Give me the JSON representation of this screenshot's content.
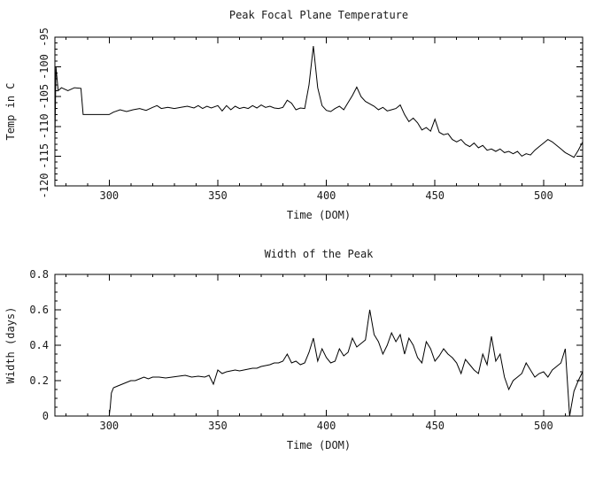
{
  "figure": {
    "background_color": "#ffffff",
    "line_color": "#000000"
  },
  "chart_data": [
    {
      "type": "line",
      "title": "Peak Focal Plane Temperature",
      "xlabel": "Time (DOM)",
      "ylabel": "Temp in C",
      "xlim": [
        275,
        518
      ],
      "ylim": [
        -120,
        -95
      ],
      "grid": false,
      "legend": "none",
      "x_ticks": [
        300,
        350,
        400,
        450,
        500
      ],
      "x_tick_labels": [
        "300",
        "350",
        "400",
        "450",
        "500"
      ],
      "x_minor_step": 10,
      "y_ticks": [
        -120,
        -115,
        -110,
        -105,
        -100,
        -95
      ],
      "y_tick_labels": [
        "-120",
        "-115",
        "-110",
        "-105",
        "-100",
        "-95"
      ],
      "y_minor_step": 1,
      "x": [
        275,
        275.5,
        276.5,
        278,
        281,
        284,
        287,
        288,
        292,
        296,
        300,
        302,
        305,
        308,
        311,
        314,
        317,
        320,
        322,
        324,
        327,
        330,
        333,
        336,
        339,
        341,
        343,
        345,
        347,
        350,
        352,
        354,
        356,
        358,
        360,
        362,
        364,
        366,
        368,
        370,
        372,
        374,
        376,
        378,
        380,
        382,
        384,
        386,
        388,
        390,
        392,
        394,
        396,
        398,
        400,
        402,
        404,
        406,
        408,
        410,
        412,
        414,
        416,
        418,
        420,
        422,
        424,
        426,
        428,
        430,
        432,
        434,
        436,
        438,
        440,
        442,
        444,
        446,
        448,
        450,
        452,
        454,
        456,
        458,
        460,
        462,
        464,
        466,
        468,
        470,
        472,
        474,
        476,
        478,
        480,
        482,
        484,
        486,
        488,
        490,
        492,
        494,
        496,
        498,
        500,
        502,
        504,
        506,
        508,
        510,
        512,
        514,
        516,
        518
      ],
      "y": [
        -112,
        -100,
        -104,
        -103.5,
        -104,
        -103.5,
        -103.6,
        -108,
        -108,
        -108,
        -108,
        -107.6,
        -107.2,
        -107.5,
        -107.2,
        -107,
        -107.3,
        -106.8,
        -106.5,
        -107,
        -106.8,
        -107,
        -106.8,
        -106.6,
        -106.9,
        -106.5,
        -107,
        -106.6,
        -106.9,
        -106.5,
        -107.4,
        -106.5,
        -107.2,
        -106.6,
        -107,
        -106.8,
        -107,
        -106.5,
        -106.9,
        -106.4,
        -106.8,
        -106.6,
        -106.9,
        -107,
        -106.8,
        -105.6,
        -106.1,
        -107.2,
        -106.9,
        -107,
        -103,
        -96.5,
        -103.5,
        -106.5,
        -107.3,
        -107.5,
        -107,
        -106.6,
        -107.2,
        -106,
        -104.8,
        -103.4,
        -105,
        -105.8,
        -106.2,
        -106.6,
        -107.2,
        -106.8,
        -107.4,
        -107.2,
        -107,
        -106.4,
        -108,
        -109.2,
        -108.6,
        -109.4,
        -110.6,
        -110.2,
        -110.8,
        -108.8,
        -111,
        -111.4,
        -111.2,
        -112.2,
        -112.6,
        -112.2,
        -113,
        -113.4,
        -112.8,
        -113.6,
        -113.2,
        -114,
        -113.8,
        -114.2,
        -113.8,
        -114.4,
        -114.2,
        -114.6,
        -114.2,
        -115,
        -114.6,
        -114.8,
        -114,
        -113.4,
        -112.8,
        -112.2,
        -112.6,
        -113.2,
        -113.8,
        -114.4,
        -114.8,
        -115.2,
        -114,
        -112.6
      ]
    },
    {
      "type": "line",
      "title": "Width of the Peak",
      "xlabel": "Time (DOM)",
      "ylabel": "Width (days)",
      "xlim": [
        275,
        518
      ],
      "ylim": [
        0,
        0.8
      ],
      "grid": false,
      "legend": "none",
      "x_ticks": [
        300,
        350,
        400,
        450,
        500
      ],
      "x_tick_labels": [
        "300",
        "350",
        "400",
        "450",
        "500"
      ],
      "x_minor_step": 10,
      "y_ticks": [
        0,
        0.2,
        0.4,
        0.6,
        0.8
      ],
      "y_tick_labels": [
        "0",
        "0.2",
        "0.4",
        "0.6",
        "0.8"
      ],
      "y_minor_step": 0.05,
      "x": [
        300,
        300.5,
        301,
        302,
        304,
        306,
        308,
        310,
        312,
        314,
        316,
        318,
        320,
        323,
        326,
        329,
        332,
        335,
        338,
        341,
        344,
        346,
        348,
        350,
        352,
        354,
        356,
        358,
        360,
        362,
        364,
        366,
        368,
        370,
        372,
        374,
        376,
        378,
        380,
        382,
        384,
        386,
        388,
        390,
        392,
        394,
        396,
        398,
        400,
        402,
        404,
        406,
        408,
        410,
        412,
        414,
        416,
        418,
        420,
        422,
        424,
        426,
        428,
        430,
        432,
        434,
        436,
        438,
        440,
        442,
        444,
        446,
        448,
        450,
        452,
        454,
        456,
        458,
        460,
        462,
        464,
        466,
        468,
        470,
        472,
        474,
        476,
        478,
        480,
        482,
        484,
        486,
        488,
        490,
        492,
        494,
        496,
        498,
        500,
        502,
        504,
        506,
        508,
        510,
        512,
        514,
        516,
        518
      ],
      "y": [
        0,
        0.05,
        0.13,
        0.16,
        0.17,
        0.18,
        0.19,
        0.2,
        0.2,
        0.21,
        0.22,
        0.21,
        0.22,
        0.22,
        0.215,
        0.22,
        0.225,
        0.23,
        0.22,
        0.225,
        0.22,
        0.23,
        0.18,
        0.26,
        0.24,
        0.25,
        0.255,
        0.26,
        0.255,
        0.26,
        0.265,
        0.27,
        0.27,
        0.28,
        0.285,
        0.29,
        0.3,
        0.3,
        0.31,
        0.35,
        0.3,
        0.31,
        0.29,
        0.3,
        0.36,
        0.44,
        0.31,
        0.38,
        0.33,
        0.3,
        0.31,
        0.38,
        0.34,
        0.36,
        0.44,
        0.39,
        0.41,
        0.43,
        0.6,
        0.46,
        0.42,
        0.35,
        0.4,
        0.47,
        0.42,
        0.46,
        0.35,
        0.44,
        0.4,
        0.33,
        0.3,
        0.42,
        0.38,
        0.31,
        0.34,
        0.38,
        0.35,
        0.33,
        0.3,
        0.24,
        0.32,
        0.29,
        0.26,
        0.24,
        0.35,
        0.29,
        0.45,
        0.31,
        0.35,
        0.22,
        0.15,
        0.2,
        0.22,
        0.24,
        0.3,
        0.26,
        0.22,
        0.24,
        0.25,
        0.22,
        0.26,
        0.28,
        0.3,
        0.38,
        0.0,
        0.14,
        0.2,
        0.25
      ]
    }
  ]
}
